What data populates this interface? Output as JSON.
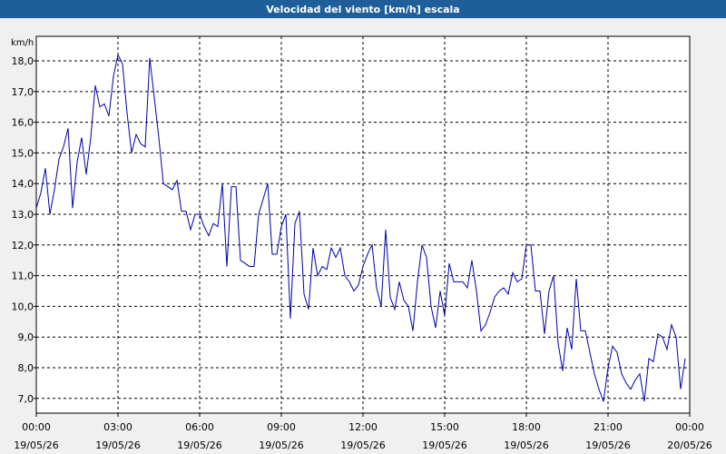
{
  "chart_data": {
    "type": "line",
    "title": "Velocidad del viento [km/h] escala",
    "ylabel": "km/h",
    "xlim": [
      0,
      1440
    ],
    "ylim": [
      6.52,
      18.8
    ],
    "xticks": [
      {
        "value": 0,
        "label": "00:00"
      },
      {
        "value": 180,
        "label": "03:00"
      },
      {
        "value": 360,
        "label": "06:00"
      },
      {
        "value": 540,
        "label": "09:00"
      },
      {
        "value": 720,
        "label": "12:00"
      },
      {
        "value": 900,
        "label": "15:00"
      },
      {
        "value": 1080,
        "label": "18:00"
      },
      {
        "value": 1260,
        "label": "21:00"
      },
      {
        "value": 1440,
        "label": "00:00"
      }
    ],
    "xtick_dates": [
      "19/05/26",
      "19/05/26",
      "19/05/26",
      "19/05/26",
      "19/05/26",
      "19/05/26",
      "19/05/26",
      "19/05/26",
      "20/05/26"
    ],
    "yticks": [
      {
        "value": 7,
        "label": "7,0"
      },
      {
        "value": 8,
        "label": "8,0"
      },
      {
        "value": 9,
        "label": "9,0"
      },
      {
        "value": 10,
        "label": "10,0"
      },
      {
        "value": 11,
        "label": "11,0"
      },
      {
        "value": 12,
        "label": "12,0"
      },
      {
        "value": 13,
        "label": "13,0"
      },
      {
        "value": 14,
        "label": "14,0"
      },
      {
        "value": 15,
        "label": "15,0"
      },
      {
        "value": 16,
        "label": "16,0"
      },
      {
        "value": 17,
        "label": "17,0"
      },
      {
        "value": 18,
        "label": "18,0"
      }
    ],
    "grid": true,
    "series": [
      {
        "color": "#0000aa",
        "x": [
          0,
          10,
          20,
          30,
          40,
          50,
          60,
          70,
          80,
          90,
          100,
          110,
          120,
          130,
          140,
          150,
          160,
          170,
          180,
          190,
          200,
          210,
          220,
          230,
          240,
          250,
          260,
          270,
          280,
          290,
          300,
          310,
          320,
          330,
          340,
          350,
          360,
          370,
          380,
          390,
          400,
          410,
          420,
          430,
          440,
          450,
          460,
          470,
          480,
          490,
          500,
          510,
          520,
          530,
          540,
          550,
          560,
          570,
          580,
          590,
          600,
          610,
          620,
          630,
          640,
          650,
          660,
          670,
          680,
          690,
          700,
          710,
          720,
          730,
          740,
          750,
          760,
          770,
          780,
          790,
          800,
          810,
          820,
          830,
          840,
          850,
          860,
          870,
          880,
          890,
          900,
          910,
          920,
          930,
          940,
          950,
          960,
          970,
          980,
          990,
          1000,
          1010,
          1020,
          1030,
          1040,
          1050,
          1060,
          1070,
          1080,
          1090,
          1100,
          1110,
          1120,
          1130,
          1140,
          1150,
          1160,
          1170,
          1180,
          1190,
          1200,
          1210,
          1220,
          1230,
          1240,
          1250,
          1260,
          1270,
          1280,
          1290,
          1300,
          1310,
          1320,
          1330,
          1340,
          1350,
          1360,
          1370,
          1380,
          1390,
          1400,
          1410,
          1420,
          1430
        ],
        "values": [
          13.2,
          13.7,
          14.5,
          13.0,
          13.8,
          14.8,
          15.2,
          15.8,
          13.2,
          14.7,
          15.5,
          14.3,
          15.5,
          17.2,
          16.5,
          16.6,
          16.2,
          17.5,
          18.2,
          17.9,
          16.3,
          15.0,
          15.6,
          15.3,
          15.2,
          18.1,
          16.8,
          15.5,
          14.0,
          13.9,
          13.8,
          14.1,
          13.1,
          13.1,
          12.5,
          13.0,
          13.0,
          12.6,
          12.3,
          12.7,
          12.6,
          14.0,
          11.3,
          13.9,
          13.9,
          11.5,
          11.4,
          11.3,
          11.3,
          13.0,
          13.5,
          14.0,
          11.7,
          11.7,
          12.6,
          13.0,
          9.6,
          12.7,
          13.1,
          10.4,
          9.9,
          11.9,
          11.0,
          11.3,
          11.2,
          11.9,
          11.6,
          11.9,
          11.0,
          10.8,
          10.5,
          10.7,
          11.3,
          11.7,
          12.0,
          10.6,
          10.0,
          12.5,
          10.3,
          9.9,
          10.8,
          10.2,
          10.0,
          9.2,
          10.8,
          12.0,
          11.6,
          10.0,
          9.3,
          10.5,
          9.7,
          11.4,
          10.8,
          10.8,
          10.8,
          10.6,
          11.5,
          10.5,
          9.2,
          9.4,
          9.8,
          10.3,
          10.5,
          10.6,
          10.4,
          11.1,
          10.8,
          10.9,
          12.0,
          12.0,
          10.5,
          10.5,
          9.1,
          10.5,
          11.0,
          8.8,
          7.9,
          9.3,
          8.6,
          10.9,
          9.2,
          9.2,
          8.5,
          7.8,
          7.3,
          6.9,
          8.0,
          8.7,
          8.5,
          7.8,
          7.5,
          7.3,
          7.6,
          7.8,
          6.9,
          8.3,
          8.2,
          9.1,
          9.0,
          8.6,
          9.4,
          9.0,
          7.3,
          8.3
        ]
      }
    ]
  }
}
